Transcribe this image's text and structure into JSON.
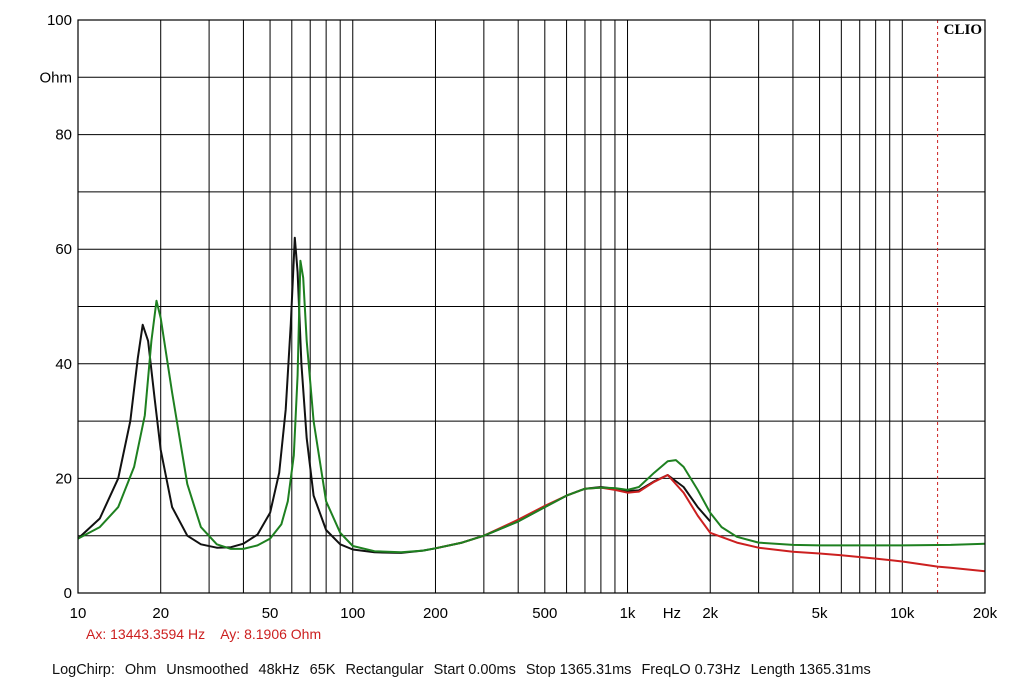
{
  "brand": "CLIO",
  "chart_data": {
    "type": "line",
    "title": "",
    "xlabel": "Hz",
    "ylabel": "Ohm",
    "xscale": "log",
    "xlim": [
      10,
      20000
    ],
    "ylim": [
      0,
      100
    ],
    "x_ticks": [
      {
        "value": 10,
        "label": "10"
      },
      {
        "value": 20,
        "label": "20"
      },
      {
        "value": 50,
        "label": "50"
      },
      {
        "value": 100,
        "label": "100"
      },
      {
        "value": 200,
        "label": "200"
      },
      {
        "value": 500,
        "label": "500"
      },
      {
        "value": 1000,
        "label": "1k"
      },
      {
        "value": 2000,
        "label": "2k"
      },
      {
        "value": 5000,
        "label": "5k"
      },
      {
        "value": 10000,
        "label": "10k"
      },
      {
        "value": 20000,
        "label": "20k"
      }
    ],
    "y_ticks": [
      {
        "value": 0,
        "label": "0"
      },
      {
        "value": 20,
        "label": "20"
      },
      {
        "value": 40,
        "label": "40"
      },
      {
        "value": 60,
        "label": "60"
      },
      {
        "value": 80,
        "label": "80"
      },
      {
        "value": 100,
        "label": "100"
      }
    ],
    "grid": true,
    "cursor_x": 13443.3594,
    "series": [
      {
        "color": "#111111",
        "x": [
          10,
          12,
          14,
          15.5,
          16.5,
          17.2,
          18,
          19,
          20,
          22,
          25,
          28,
          32,
          36,
          40,
          45,
          50,
          54,
          57,
          59.5,
          61.5,
          63,
          65,
          68,
          72,
          80,
          90,
          100,
          120,
          150,
          180,
          200,
          250,
          300,
          400,
          500,
          600,
          700,
          800,
          900,
          1000,
          1100,
          1250,
          1400,
          1600,
          1800,
          2000
        ],
        "y": [
          9.5,
          13,
          20,
          30,
          41,
          46.8,
          44,
          34,
          25,
          15,
          10,
          8.5,
          7.9,
          8,
          8.6,
          10.2,
          14,
          21,
          32,
          47,
          62,
          56,
          40,
          27,
          17,
          11,
          8.5,
          7.6,
          7.1,
          7,
          7.4,
          7.8,
          8.8,
          10,
          12.5,
          15,
          17,
          18.2,
          18.5,
          18.2,
          17.8,
          17.9,
          19.5,
          20.6,
          18.5,
          15,
          12.5
        ]
      },
      {
        "color": "#cc2020",
        "x": [
          200,
          250,
          300,
          400,
          500,
          600,
          700,
          800,
          900,
          1000,
          1100,
          1250,
          1400,
          1600,
          1800,
          2000,
          2500,
          3000,
          4000,
          5000,
          6000,
          8000,
          10000,
          13443,
          15000,
          20000
        ],
        "y": [
          7.8,
          8.8,
          10,
          12.8,
          15.2,
          17,
          18.2,
          18.4,
          18,
          17.5,
          17.7,
          19.4,
          20.6,
          17.5,
          13.5,
          10.5,
          8.8,
          7.9,
          7.2,
          6.9,
          6.6,
          6,
          5.5,
          4.6,
          4.4,
          3.8
        ]
      },
      {
        "color": "#1e8020",
        "x": [
          10,
          12,
          14,
          16,
          17.5,
          18.5,
          19.3,
          20,
          22,
          25,
          28,
          32,
          36,
          40,
          45,
          50,
          55,
          58,
          61,
          63,
          64.5,
          66,
          68,
          72,
          80,
          90,
          100,
          120,
          150,
          180,
          200,
          250,
          300,
          400,
          500,
          600,
          700,
          800,
          900,
          1000,
          1100,
          1250,
          1400,
          1500,
          1600,
          1800,
          2000,
          2200,
          2500,
          3000,
          4000,
          5000,
          8000,
          10000,
          15000,
          20000
        ],
        "y": [
          9.5,
          11.5,
          15,
          22,
          31,
          44,
          51,
          48,
          35,
          19,
          11.5,
          8.5,
          7.7,
          7.7,
          8.3,
          9.5,
          12,
          16,
          24,
          38,
          58,
          55,
          44,
          30,
          16,
          10.5,
          8.2,
          7.3,
          7.1,
          7.4,
          7.8,
          8.8,
          10,
          12.5,
          15,
          17,
          18.2,
          18.4,
          18.3,
          18,
          18.5,
          21,
          23,
          23.2,
          22,
          18,
          14,
          11.5,
          9.8,
          8.8,
          8.4,
          8.3,
          8.3,
          8.3,
          8.4,
          8.6
        ]
      }
    ]
  },
  "cursor_readout": {
    "ax": "Ax: 13443.3594 Hz",
    "ay": "Ay: 8.1906 Ohm"
  },
  "status_bar": [
    "LogChirp:",
    "Ohm",
    "Unsmoothed",
    "48kHz",
    "65K",
    "Rectangular",
    "Start 0.00ms",
    "Stop 1365.31ms",
    "FreqLO 0.73Hz",
    "Length 1365.31ms"
  ]
}
